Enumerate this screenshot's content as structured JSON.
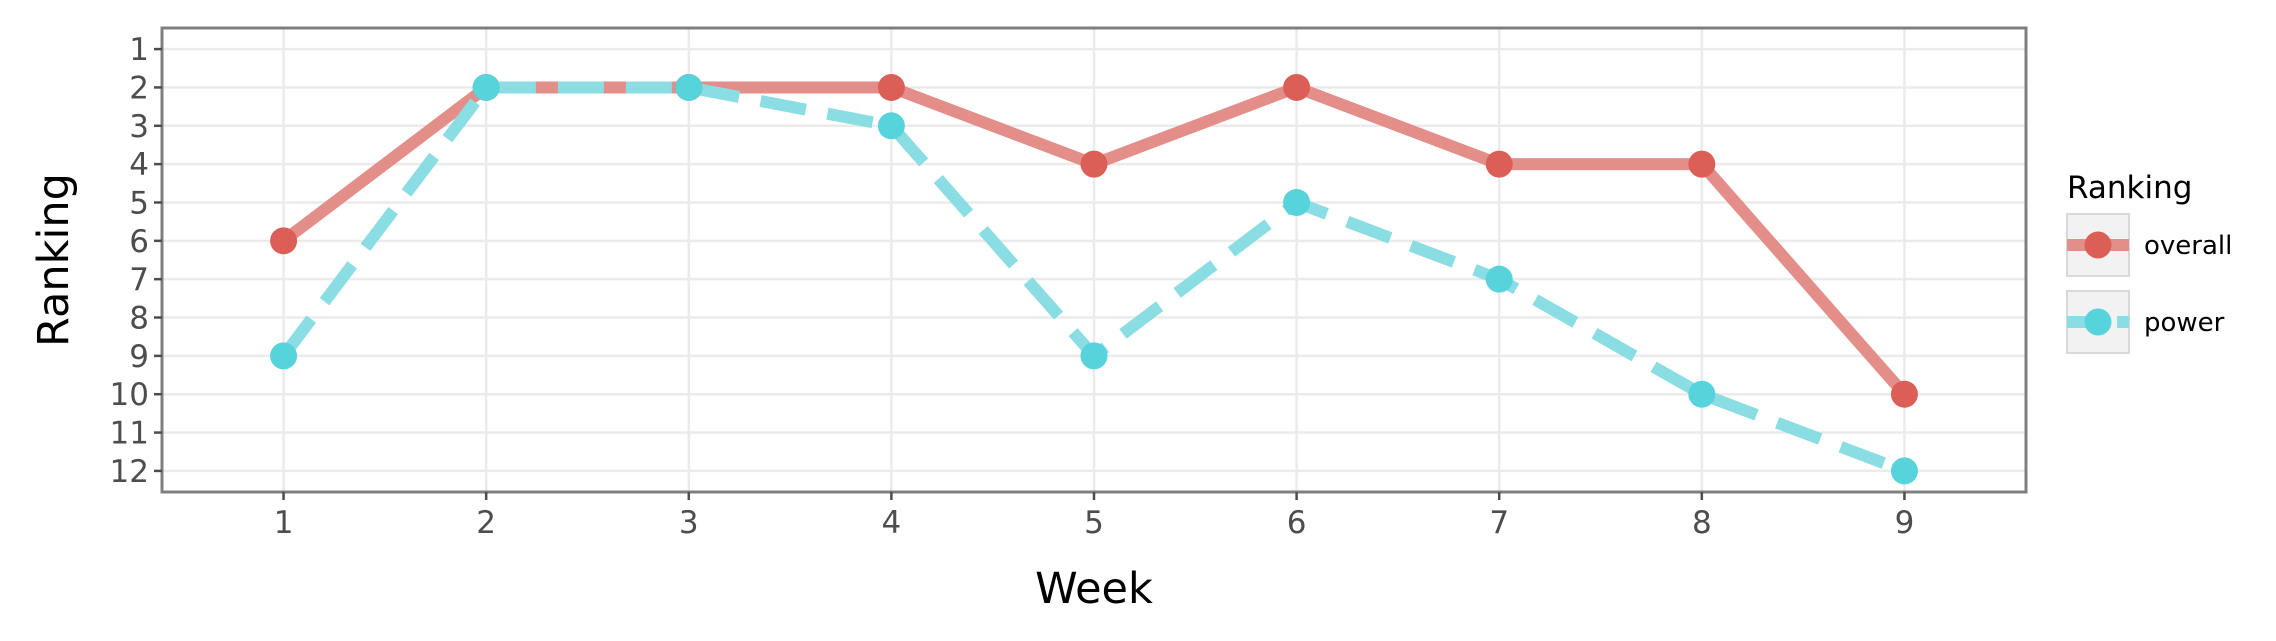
{
  "chart_data": {
    "type": "line",
    "xlabel": "Week",
    "ylabel": "Ranking",
    "x": [
      1,
      2,
      3,
      4,
      5,
      6,
      7,
      8,
      9
    ],
    "x_ticks": [
      "1",
      "2",
      "3",
      "4",
      "5",
      "6",
      "7",
      "8",
      "9"
    ],
    "y_ticks": [
      "1",
      "2",
      "3",
      "4",
      "5",
      "6",
      "7",
      "8",
      "9",
      "10",
      "11",
      "12"
    ],
    "xlim": [
      0.4,
      9.6
    ],
    "ylim": [
      12.55,
      0.45
    ],
    "y_reversed": true,
    "grid": true,
    "legend": {
      "title": "Ranking",
      "position": "right"
    },
    "series": [
      {
        "name": "overall",
        "values": [
          6,
          2,
          2,
          2,
          4,
          2,
          4,
          4,
          10
        ],
        "line_color": "#e38e89",
        "point_color": "#db5f57",
        "line_style": "solid"
      },
      {
        "name": "power",
        "values": [
          9,
          2,
          2,
          3,
          9,
          5,
          7,
          10,
          12
        ],
        "line_color": "#8adde3",
        "point_color": "#57d3db",
        "line_style": "dashed"
      }
    ]
  }
}
